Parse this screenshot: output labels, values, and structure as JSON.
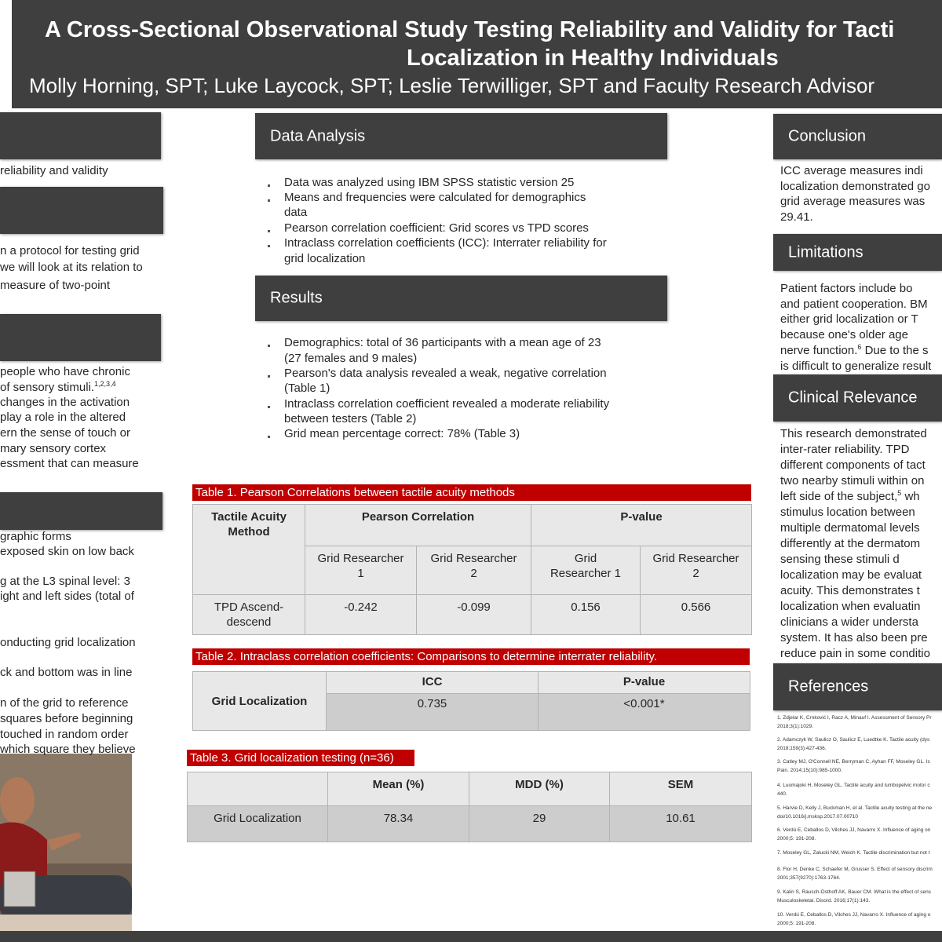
{
  "header": {
    "title_lines": [
      "A Cross-Sectional Observational Study Testing Reliability and Validity for Tacti",
      "Localization in Healthy Individuals"
    ],
    "authors": "Molly Horning, SPT; Luke Laycock, SPT; Leslie Terwilliger, SPT and Faculty Research Advisor"
  },
  "left": {
    "sections": [
      {
        "lines": [
          "reliability and validity"
        ]
      },
      {
        "lines": [
          "n a protocol for testing grid",
          "we will look at its relation to",
          "measure of two-point"
        ]
      },
      {
        "lines": [
          "people who have chronic",
          {
            "text": "of sensory stimuli.",
            "sup": "1,2,3,4"
          },
          "changes in the activation",
          "play a role in the altered",
          "ern the sense of touch or",
          "mary sensory cortex",
          "essment that can measure"
        ]
      },
      {
        "lines": [
          "graphic forms",
          "exposed skin on low back",
          "g at the L3 spinal level: 3",
          "ight and left sides (total of",
          "onducting grid localization",
          "ck and bottom was in line",
          "n of the grid to reference",
          "squares before beginning",
          "touched in random order",
          "which square they believe"
        ]
      }
    ]
  },
  "data_analysis": {
    "heading": "Data Analysis",
    "bullets": [
      [
        "Data was analyzed using IBM SPSS statistic version 25"
      ],
      [
        "Means and frequencies were calculated for demographics",
        "data"
      ],
      [
        "Pearson correlation coefficient: Grid scores vs TPD scores"
      ],
      [
        "Intraclass correlation coefficients (ICC): Interrater reliability for",
        "grid localization"
      ]
    ]
  },
  "results": {
    "heading": "Results",
    "bullets": [
      [
        "Demographics: total of 36 participants with a mean age of 23",
        "(27 females and 9 males)"
      ],
      [
        "Pearson's data analysis revealed a weak, negative correlation",
        "(Table 1)"
      ],
      [
        "Intraclass correlation coefficient revealed a moderate reliability",
        "between testers (Table 2)"
      ],
      [
        "Grid mean percentage correct: 78% (Table 3)"
      ]
    ]
  },
  "table1": {
    "title": "Table 1. Pearson Correlations between tactile acuity methods",
    "header": [
      "Tactile Acuity Method",
      "Pearson Correlation",
      "P-value"
    ],
    "subheader": [
      "Grid Researcher 1",
      "Grid Researcher 2",
      "Grid Researcher 1",
      "Grid Researcher 2"
    ],
    "rows": [
      [
        "TPD Ascend-descend",
        "-0.242",
        "-0.099",
        "0.156",
        "0.566"
      ]
    ]
  },
  "table2": {
    "title": "Table 2. Intraclass correlation coefficients: Comparisons to determine interrater reliability.",
    "row_label": "Grid Localization",
    "header": [
      "ICC",
      "P-value"
    ],
    "values": [
      "0.735",
      "<0.001*"
    ]
  },
  "table3": {
    "title": "Table 3. Grid localization testing (n=36)",
    "header": [
      "Mean (%)",
      "MDD (%)",
      "SEM"
    ],
    "rows": [
      [
        "Grid Localization",
        "78.34",
        "29",
        "10.61"
      ]
    ]
  },
  "conclusion": {
    "heading": "Conclusion",
    "lines": [
      "ICC average measures indi",
      "localization demonstrated go",
      "grid average measures was",
      "29.41."
    ]
  },
  "limitations": {
    "heading": "Limitations",
    "lines": [
      "Patient factors include bo",
      "and patient cooperation. BM",
      "either grid localization or T",
      "because one's older age",
      {
        "text": "nerve function.",
        "sup": "6",
        "rest": " Due to the s"
      },
      "is difficult to generalize result"
    ]
  },
  "clinical_relevance": {
    "heading": "Clinical Relevance",
    "lines": [
      "This research demonstrated",
      "inter-rater reliability. TPD",
      "different components of tact",
      "two nearby stimuli within on",
      {
        "text": "left side of the subject,",
        "sup": "5",
        "rest": " wh"
      },
      "stimulus location between",
      "multiple dermatomal levels",
      "differently at the dermatom",
      "sensing these stimuli d",
      "localization may be evaluat",
      "acuity. This demonstrates t",
      "localization when evaluatin",
      "clinicians a wider understa",
      "system. It has also been pre",
      "reduce pain in some conditio"
    ]
  },
  "references": {
    "heading": "References",
    "items": [
      [
        "1. Zdjelar K, Crnković I, Racz A, Minauf I. Assessment of Sensory Pr",
        "2018;3(1):1029."
      ],
      [
        "2. Adamczyk W, Saulicz O, Saulicz E, Luedtke K. Tactile acuity (dys",
        "2018;159(3):427-436."
      ],
      [
        "3. Catley MJ, O'Connell NE, Berryman C, Ayhan FF, Moseley GL. Is",
        "Pain. 2014;15(10):985-1000."
      ],
      [
        "4. Luomajoki H, Moseley GL. Tactile acuity and lumbopelvic motor c",
        "440."
      ],
      [
        "5. Harvie D, Kelly J, Buckman H, et al. Tactile acuity testing at the ne",
        "doi/10.1016/j.msksp.2017.07.00710"
      ],
      [
        "6. Verdú E, Ceballos D, Vilches JJ, Navarro X. Influence of aging on",
        "2000;5: 191-208."
      ],
      [
        "7. Moseley GL, Zalucki NM, Weich K. Tactile discrimination but not t"
      ],
      [
        "8. Flor H, Denke C, Schaefer M, Grusser S. Effect of sensory discrim",
        "2001;357(9270):1763-1764."
      ],
      [
        "9. Kalin S, Rausch-Osthoff AK, Bauer CM. What is the effect of sens",
        "Musculoskeletal. Disord. 2016;17(1):143."
      ],
      [
        "10. Verdú E, Ceballos D, Vilches JJ, Navarro X. Influence of aging o",
        "2000;5: 191-208."
      ]
    ]
  }
}
